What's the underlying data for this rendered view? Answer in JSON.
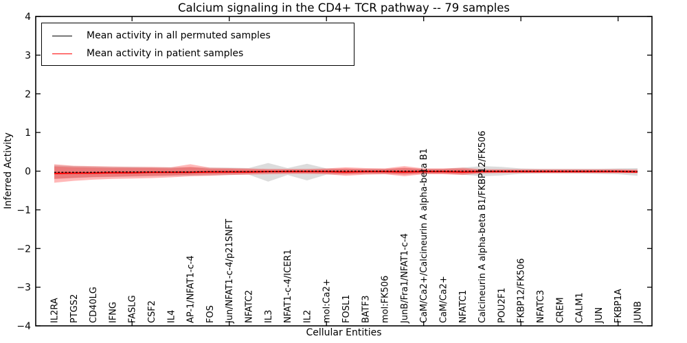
{
  "figure": {
    "title": "Calcium signaling in the CD4+ TCR pathway -- 79 samples",
    "xlabel": "Cellular Entities",
    "ylabel": "Inferred Activity"
  },
  "legend": {
    "entries": [
      {
        "label": "Mean activity in all permuted samples",
        "color": "#000000",
        "style": "dashed"
      },
      {
        "label": "Mean activity in patient samples",
        "color": "#ff0000",
        "style": "solid"
      }
    ]
  },
  "chart_data": {
    "type": "line",
    "title": "Calcium signaling in the CD4+ TCR pathway -- 79 samples",
    "xlabel": "Cellular Entities",
    "ylabel": "Inferred Activity",
    "ylim": [
      -4,
      4
    ],
    "yticks": [
      4,
      3,
      2,
      1,
      0,
      -1,
      -2,
      -3,
      -4
    ],
    "xtick_major_indices": [
      4,
      9,
      14,
      19,
      24,
      29
    ],
    "grid": false,
    "legend_position": "upper left",
    "categories": [
      "IL2RA",
      "PTGS2",
      "CD40LG",
      "IFNG",
      "FASLG",
      "CSF2",
      "IL4",
      "AP-1/NFAT1-c-4",
      "FOS",
      "Jun/NFAT1-c-4/p21SNFT",
      "NFATC2",
      "IL3",
      "NFAT1-c-4/ICER1",
      "IL2",
      "mol:Ca2+",
      "FOSL1",
      "BATF3",
      "mol:FK506",
      "JunB/Fra1/NFAT1-c-4",
      "CaM/Ca2+/Calcineurin A alpha-beta B1",
      "CaM/Ca2+",
      "NFATC1",
      "Calcineurin A alpha-beta B1/FKBP12/FK506",
      "POU2F1",
      "FKBP12/FK506",
      "NFATC3",
      "CREM",
      "CALM1",
      "JUN",
      "FKBP1A",
      "JUNB"
    ],
    "series": [
      {
        "name": "Mean activity in all permuted samples",
        "color": "#000000",
        "style": "dashed",
        "values": [
          -0.03,
          -0.03,
          -0.03,
          -0.02,
          -0.02,
          -0.02,
          -0.02,
          -0.02,
          -0.01,
          -0.01,
          -0.01,
          -0.01,
          0,
          0,
          0,
          0,
          0,
          0,
          0,
          0,
          0,
          0,
          0,
          0,
          0,
          0,
          0,
          0,
          0,
          0,
          -0.01
        ]
      },
      {
        "name": "Mean activity in patient samples",
        "color": "#ff0000",
        "style": "solid",
        "values": [
          -0.06,
          -0.05,
          -0.05,
          -0.04,
          -0.04,
          -0.03,
          -0.03,
          -0.03,
          -0.02,
          -0.02,
          -0.02,
          -0.01,
          -0.01,
          -0.01,
          -0.01,
          -0.02,
          -0.01,
          -0.01,
          -0.02,
          -0.01,
          -0.01,
          -0.02,
          -0.01,
          -0.01,
          -0.01,
          -0.01,
          -0.01,
          -0.01,
          -0.01,
          -0.01,
          -0.02
        ]
      }
    ],
    "bands": [
      {
        "name": "permuted-samples-range",
        "color": "#808080",
        "opacity": 0.28,
        "upper": [
          0.15,
          0.13,
          0.12,
          0.11,
          0.11,
          0.1,
          0.1,
          0.1,
          0.09,
          0.09,
          0.08,
          0.21,
          0.08,
          0.19,
          0.07,
          0.06,
          0.06,
          0.06,
          0.08,
          0.06,
          0.06,
          0.09,
          0.13,
          0.11,
          0.07,
          0.06,
          0.06,
          0.06,
          0.06,
          0.07,
          0.08
        ],
        "lower": [
          -0.2,
          -0.18,
          -0.16,
          -0.15,
          -0.14,
          -0.13,
          -0.12,
          -0.12,
          -0.11,
          -0.1,
          -0.09,
          -0.27,
          -0.1,
          -0.24,
          -0.09,
          -0.08,
          -0.07,
          -0.07,
          -0.08,
          -0.06,
          -0.06,
          -0.09,
          -0.13,
          -0.11,
          -0.07,
          -0.06,
          -0.06,
          -0.06,
          -0.07,
          -0.08,
          -0.12
        ]
      },
      {
        "name": "patient-samples-range-outer",
        "color": "#ff0000",
        "opacity": 0.28,
        "upper": [
          0.18,
          0.14,
          0.13,
          0.12,
          0.11,
          0.11,
          0.1,
          0.18,
          0.09,
          0.08,
          0.07,
          0.06,
          0.06,
          0.06,
          0.07,
          0.1,
          0.08,
          0.07,
          0.13,
          0.07,
          0.07,
          0.09,
          0.05,
          0.05,
          0.05,
          0.05,
          0.05,
          0.05,
          0.05,
          0.05,
          0.04
        ],
        "lower": [
          -0.3,
          -0.25,
          -0.22,
          -0.2,
          -0.19,
          -0.18,
          -0.16,
          -0.13,
          -0.12,
          -0.1,
          -0.09,
          -0.08,
          -0.07,
          -0.07,
          -0.08,
          -0.12,
          -0.09,
          -0.08,
          -0.13,
          -0.08,
          -0.08,
          -0.1,
          -0.06,
          -0.05,
          -0.05,
          -0.05,
          -0.05,
          -0.05,
          -0.05,
          -0.05,
          -0.05
        ]
      },
      {
        "name": "patient-samples-range-inner",
        "color": "#ff0000",
        "opacity": 0.22,
        "upper": [
          0.12,
          0.1,
          0.09,
          0.08,
          0.08,
          0.08,
          0.07,
          0.11,
          0.06,
          0.06,
          0.05,
          0.04,
          0.04,
          0.04,
          0.05,
          0.07,
          0.05,
          0.05,
          0.09,
          0.05,
          0.05,
          0.06,
          0.03,
          0.03,
          0.03,
          0.03,
          0.03,
          0.03,
          0.03,
          0.03,
          0.03
        ],
        "lower": [
          -0.2,
          -0.17,
          -0.15,
          -0.14,
          -0.13,
          -0.12,
          -0.11,
          -0.09,
          -0.08,
          -0.07,
          -0.06,
          -0.05,
          -0.05,
          -0.05,
          -0.06,
          -0.08,
          -0.06,
          -0.06,
          -0.09,
          -0.06,
          -0.06,
          -0.07,
          -0.04,
          -0.04,
          -0.04,
          -0.04,
          -0.04,
          -0.04,
          -0.04,
          -0.04,
          -0.04
        ]
      }
    ]
  }
}
